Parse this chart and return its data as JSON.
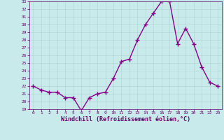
{
  "x": [
    0,
    1,
    2,
    3,
    4,
    5,
    6,
    7,
    8,
    9,
    10,
    11,
    12,
    13,
    14,
    15,
    16,
    17,
    18,
    19,
    20,
    21,
    22,
    23
  ],
  "y": [
    22.0,
    21.5,
    21.2,
    21.2,
    20.5,
    20.5,
    18.8,
    20.5,
    21.0,
    21.2,
    23.0,
    25.2,
    25.5,
    28.0,
    30.0,
    31.5,
    33.0,
    33.0,
    27.5,
    29.5,
    27.5,
    24.5,
    22.5,
    22.0
  ],
  "xlabel": "Windchill (Refroidissement éolien,°C)",
  "xlim": [
    -0.5,
    23.5
  ],
  "ylim": [
    19,
    33
  ],
  "yticks": [
    19,
    20,
    21,
    22,
    23,
    24,
    25,
    26,
    27,
    28,
    29,
    30,
    31,
    32,
    33
  ],
  "xticks": [
    0,
    1,
    2,
    3,
    4,
    5,
    6,
    7,
    8,
    9,
    10,
    11,
    12,
    13,
    14,
    15,
    16,
    17,
    18,
    19,
    20,
    21,
    22,
    23
  ],
  "line_color": "#880088",
  "marker_color": "#880088",
  "bg_color": "#c8eaea",
  "grid_color": "#b0d8d8",
  "axis_color": "#660066",
  "tick_label_color": "#660066",
  "xlabel_color": "#660066",
  "marker": "+",
  "marker_size": 4,
  "line_width": 1.0
}
